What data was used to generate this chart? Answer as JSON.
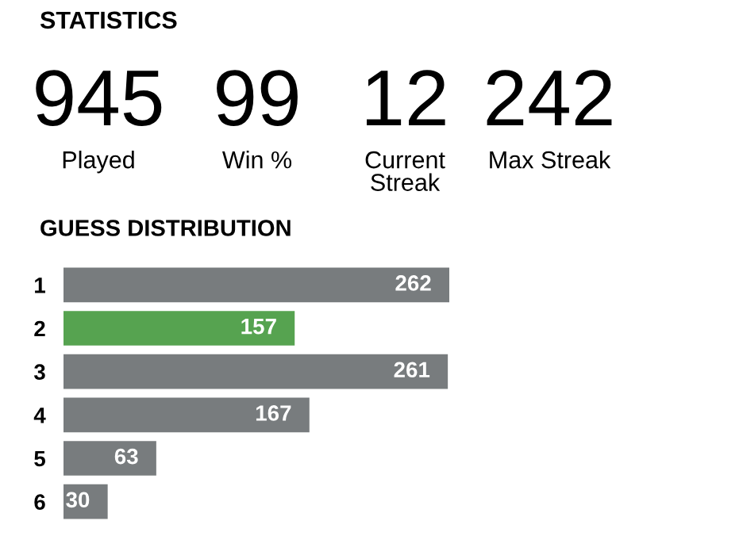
{
  "chart_data": [
    {
      "type": "other",
      "title": "STATISTICS",
      "categories": [
        "Played",
        "Win %",
        "Current\nStreak",
        "Max Streak"
      ],
      "values": [
        945,
        99,
        12,
        242
      ],
      "data_labels": true
    },
    {
      "type": "bar",
      "orientation": "horizontal",
      "title": "GUESS DISTRIBUTION",
      "categories": [
        "1",
        "2",
        "3",
        "4",
        "5",
        "6"
      ],
      "values": [
        262,
        157,
        261,
        167,
        63,
        30
      ],
      "colors": [
        "#787c7e",
        "#56a350",
        "#787c7e",
        "#787c7e",
        "#787c7e",
        "#787c7e"
      ],
      "data_labels": true,
      "grid": false,
      "legend": false
    }
  ]
}
